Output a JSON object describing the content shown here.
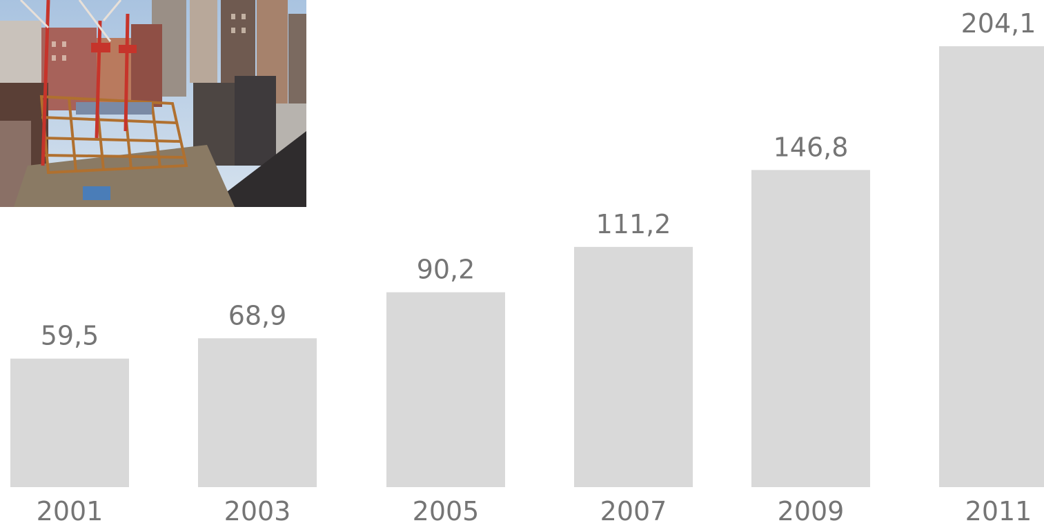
{
  "photo": {
    "subject": "construction site with cranes and steel building frame",
    "colors": {
      "sky": "#b9cfe6",
      "steel": "#b0702f",
      "crane": "#c6342b",
      "buildings": "#8a5a4a"
    }
  },
  "chart_data": {
    "type": "bar",
    "categories": [
      "2001",
      "2003",
      "2005",
      "2007",
      "2009",
      "2011"
    ],
    "values": [
      59.5,
      68.9,
      90.2,
      111.2,
      146.8,
      204.1
    ],
    "value_labels": [
      "59,5",
      "68,9",
      "90,2",
      "111,2",
      "146,8",
      "204,1"
    ],
    "ylim": [
      0,
      204.1
    ],
    "bar_color": "#d9d9d9",
    "label_color": "#757575",
    "grid": false,
    "legend": "none"
  }
}
